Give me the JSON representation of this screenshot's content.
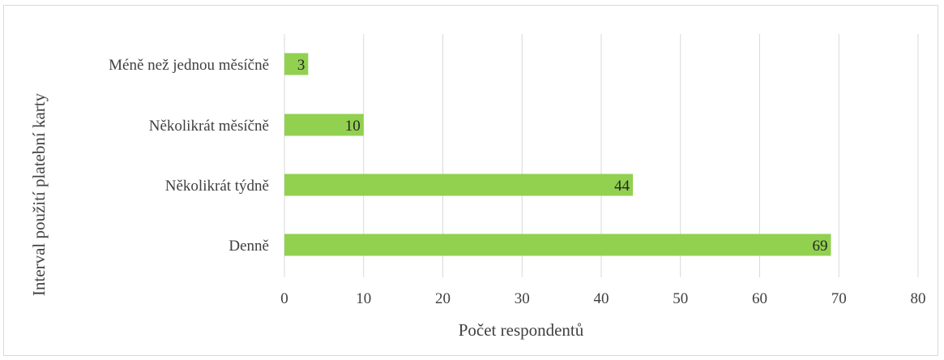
{
  "chart_data": {
    "type": "bar",
    "orientation": "horizontal",
    "categories": [
      "Méně než jednou měsíčně",
      "Několikrát měsíčně",
      "Několikrát týdně",
      "Denně"
    ],
    "values": [
      3,
      10,
      44,
      69
    ],
    "xlabel": "Počet respondentů",
    "ylabel": "Interval použití platební karty",
    "xlim": [
      0,
      80
    ],
    "x_ticks": [
      0,
      10,
      20,
      30,
      40,
      50,
      60,
      70,
      80
    ],
    "grid": true,
    "data_labels": true,
    "bar_color": "#92d050",
    "grid_color": "#d9d9d9"
  }
}
